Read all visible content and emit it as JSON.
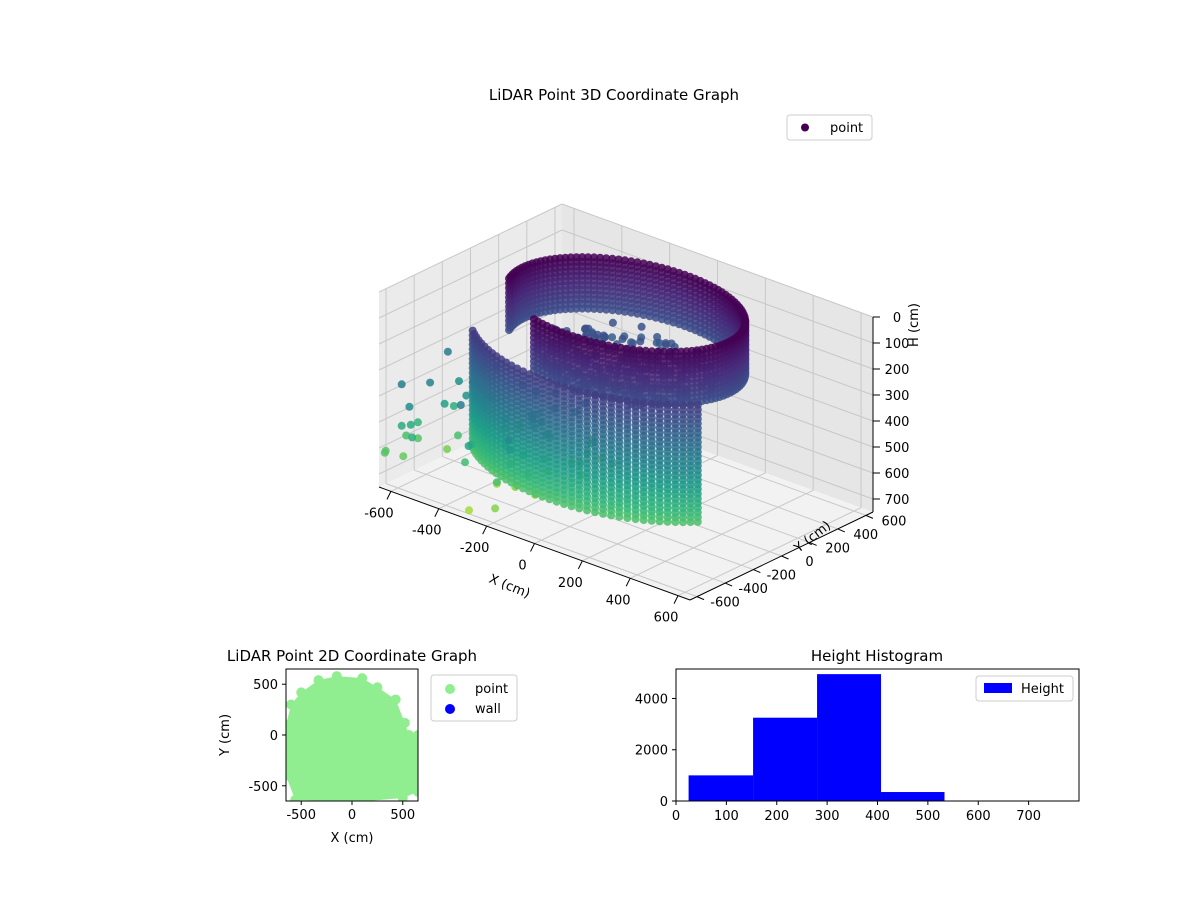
{
  "chart_data": [
    {
      "type": "scatter",
      "title": "LiDAR Point 3D Coordinate Graph",
      "projection": "3d",
      "xlabel": "X (cm)",
      "ylabel": "Y (cm)",
      "zlabel": "H (cm)",
      "x_ticks": [
        "-600",
        "-400",
        "-200",
        "0",
        "200",
        "400",
        "600"
      ],
      "y_ticks": [
        "-600",
        "-400",
        "-200",
        "0",
        "200",
        "400",
        "600"
      ],
      "z_ticks": [
        "0",
        "100",
        "200",
        "300",
        "400",
        "500",
        "600",
        "700"
      ],
      "xlim": [
        -650,
        650
      ],
      "ylim": [
        -650,
        650
      ],
      "zlim": [
        0,
        750
      ],
      "z_inverted": true,
      "grid": true,
      "legend": {
        "position": "top-right",
        "entries": [
          "point"
        ]
      },
      "colormap": "viridis",
      "color_by": "height",
      "series": [
        {
          "name": "point",
          "structure": [
            {
              "kind": "wall-ring",
              "center": [
                0,
                0
              ],
              "radius": 430,
              "h_top": 0,
              "h_bottom": 200,
              "angle_deg": [
                -110,
                200
              ]
            },
            {
              "kind": "wall-ring",
              "center": [
                0,
                0
              ],
              "radius": 560,
              "h_top": 150,
              "h_bottom": 600,
              "angle_deg": [
                220,
                330
              ]
            },
            {
              "kind": "disc",
              "center": [
                0,
                0
              ],
              "radius": 330,
              "h": 200
            },
            {
              "kind": "scatter-sparse",
              "x_range": [
                -650,
                -100
              ],
              "y_range": [
                -650,
                200
              ],
              "h_range": [
                350,
                750
              ]
            }
          ]
        }
      ]
    },
    {
      "type": "scatter",
      "title": "LiDAR Point 2D Coordinate Graph",
      "xlabel": "X (cm)",
      "ylabel": "Y (cm)",
      "x_ticks": [
        "-500",
        "0",
        "500"
      ],
      "y_ticks": [
        "-500",
        "0",
        "500"
      ],
      "xlim": [
        -650,
        650
      ],
      "ylim": [
        -650,
        650
      ],
      "grid": false,
      "legend": {
        "position": "outside-right",
        "entries": [
          "point",
          "wall"
        ]
      },
      "series": [
        {
          "name": "point",
          "color": "#90EE90",
          "region_outline": [
            [
              -600,
              300
            ],
            [
              -500,
              420
            ],
            [
              -330,
              540
            ],
            [
              -150,
              580
            ],
            [
              100,
              560
            ],
            [
              250,
              470
            ],
            [
              430,
              350
            ],
            [
              520,
              120
            ],
            [
              560,
              0
            ],
            [
              650,
              0
            ],
            [
              650,
              -560
            ],
            [
              500,
              -620
            ],
            [
              150,
              -650
            ],
            [
              -200,
              -650
            ],
            [
              -560,
              -640
            ],
            [
              -650,
              -400
            ],
            [
              -650,
              100
            ]
          ]
        },
        {
          "name": "wall",
          "color": "#0000FF",
          "points": []
        }
      ]
    },
    {
      "type": "bar",
      "title": "Height Histogram",
      "xlabel": "",
      "ylabel": "",
      "x_ticks": [
        "0",
        "100",
        "200",
        "300",
        "400",
        "500",
        "600",
        "700"
      ],
      "y_ticks": [
        "0",
        "2000",
        "4000"
      ],
      "xlim": [
        0,
        800
      ],
      "ylim": [
        0,
        5150
      ],
      "grid": false,
      "legend": {
        "position": "top-right",
        "entries": [
          "Height"
        ]
      },
      "series": [
        {
          "name": "Height",
          "color": "#0000FF",
          "bins": [
            {
              "x0": 25,
              "x1": 153,
              "count": 1000
            },
            {
              "x0": 153,
              "x1": 280,
              "count": 3250
            },
            {
              "x0": 280,
              "x1": 407,
              "count": 4950
            },
            {
              "x0": 407,
              "x1": 533,
              "count": 350
            },
            {
              "x0": 533,
              "x1": 660,
              "count": 0
            },
            {
              "x0": 660,
              "x1": 787,
              "count": 0
            }
          ]
        }
      ]
    }
  ]
}
